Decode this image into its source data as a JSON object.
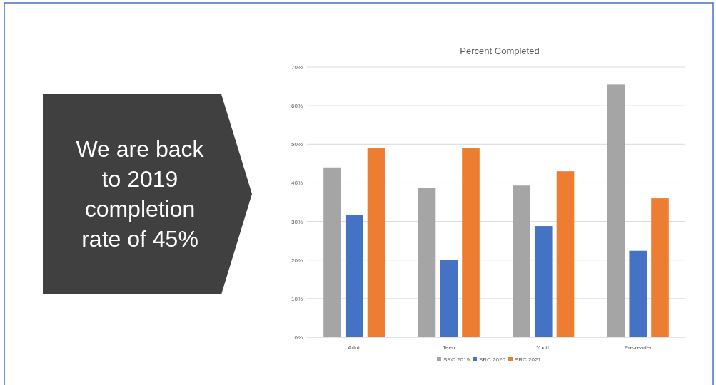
{
  "chart_data": {
    "type": "bar",
    "title": "Percent Completed",
    "categories": [
      "Adult",
      "Teen",
      "Youth",
      "Pre-reader"
    ],
    "series": [
      {
        "name": "SRC 2019",
        "color": "#a5a5a5",
        "values": [
          44,
          38.7,
          39.3,
          65.5
        ]
      },
      {
        "name": "SRC 2020",
        "color": "#4472c4",
        "values": [
          31.7,
          20,
          28.8,
          22.4
        ]
      },
      {
        "name": "SRC 2021",
        "color": "#ed7d31",
        "values": [
          49,
          49,
          43,
          36
        ]
      }
    ],
    "ylim": [
      0,
      70
    ],
    "yticks": [
      {
        "value": 0,
        "label": "0%"
      },
      {
        "value": 10,
        "label": "10%"
      },
      {
        "value": 20,
        "label": "20%"
      },
      {
        "value": 30,
        "label": "30%"
      },
      {
        "value": 40,
        "label": "40%"
      },
      {
        "value": 50,
        "label": "50%"
      },
      {
        "value": 60,
        "label": "60%"
      },
      {
        "value": 70,
        "label": "70%"
      }
    ],
    "grid": "y",
    "legend": "bottom",
    "annotations": [
      "We are back to 2019 completion rate of 45%"
    ]
  }
}
